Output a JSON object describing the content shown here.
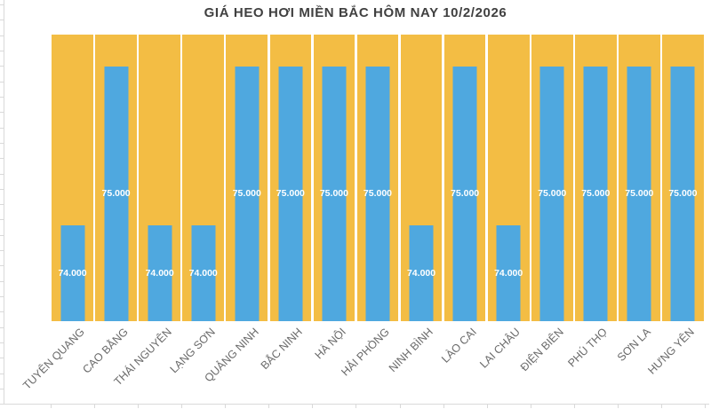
{
  "title": "GIÁ HEO HƠI MIỀN BẮC HÔM NAY 10/2/2026",
  "colors": {
    "page_bg": "#FFFFFF",
    "column_yellow": "#F3BD44",
    "bar_blue": "#4FA8DF",
    "axis_line": "#D9D9D9",
    "title_text": "#404040",
    "category_label": "#6A6A6A",
    "value_label": "#FFFFFF"
  },
  "chart_data": {
    "type": "bar",
    "title": "GIÁ HEO HƠI MIỀN BẮC HÔM NAY 10/2/2026",
    "categories": [
      "TUYÊN QUANG",
      "CAO BẰNG",
      "THÁI NGUYÊN",
      "LẠNG SƠN",
      "QUẢNG NINH",
      "BẮC NINH",
      "HÀ NỘI",
      "HẢI PHÒNG",
      "NINH BÌNH",
      "LÀO CAI",
      "LAI CHÂU",
      "ĐIỆN BIÊN",
      "PHÚ THỌ",
      "SƠN LA",
      "HƯNG YÊN"
    ],
    "values": [
      74000,
      75000,
      74000,
      74000,
      75000,
      75000,
      75000,
      75000,
      74000,
      75000,
      74000,
      75000,
      75000,
      75000,
      75000
    ],
    "value_labels": [
      "74.000",
      "75.000",
      "74.000",
      "74.000",
      "75.000",
      "75.000",
      "75.000",
      "75.000",
      "74.000",
      "75.000",
      "74.000",
      "75.000",
      "75.000",
      "75.000",
      "75.000"
    ],
    "xlabel": "",
    "ylabel": "",
    "ylim": [
      73400,
      75200
    ],
    "grid": false,
    "legend": false,
    "value_label_position": "inside-center",
    "background_columns": true
  }
}
